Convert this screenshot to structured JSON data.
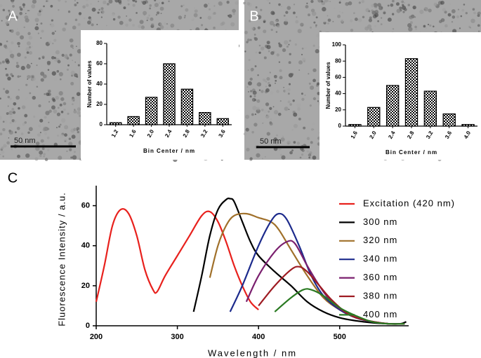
{
  "chart_data": [
    {
      "type": "bar",
      "panel": "A",
      "annotation": "50 nm",
      "categories": [
        "1.2",
        "1.6",
        "2.0",
        "2.4",
        "2.8",
        "3.2",
        "3.6"
      ],
      "values": [
        2,
        8,
        27,
        60,
        35,
        12,
        6
      ],
      "ylim": [
        0,
        80
      ],
      "yticks": [
        0,
        20,
        40,
        60,
        80
      ],
      "x_label": "Bin Center / nm",
      "y_label": "Number of values",
      "color": "#000000"
    },
    {
      "type": "bar",
      "panel": "B",
      "annotation": "50 nm",
      "categories": [
        "1.6",
        "2.0",
        "2.4",
        "2.8",
        "3.2",
        "3.6",
        "4.0"
      ],
      "values": [
        2,
        23,
        50,
        83,
        43,
        15,
        2
      ],
      "ylim": [
        0,
        100
      ],
      "yticks": [
        0,
        20,
        40,
        60,
        80,
        100
      ],
      "x_label": "Bin Center / nm",
      "y_label": "Number of values",
      "color": "#000000"
    },
    {
      "type": "line",
      "panel": "C",
      "x_label": "Wavelength / nm",
      "y_label": "Fluorescence Intensity / a.u.",
      "xlim": [
        200,
        585
      ],
      "xticks": [
        200,
        300,
        400,
        500
      ],
      "ylim": [
        0,
        70
      ],
      "yticks": [
        0,
        20,
        40,
        60
      ],
      "legend": "right",
      "series": [
        {
          "name": "Excitation (420 nm)",
          "color": "#e8211d",
          "x": [
            200,
            210,
            220,
            230,
            240,
            250,
            260,
            270,
            275,
            285,
            300,
            315,
            330,
            340,
            350,
            360,
            370,
            380,
            390,
            400
          ],
          "values": [
            12,
            30,
            50,
            58,
            56,
            45,
            28,
            18,
            17,
            25,
            35,
            45,
            55,
            57,
            52,
            42,
            30,
            20,
            12,
            8
          ]
        },
        {
          "name": "300 nm",
          "color": "#000000",
          "x": [
            320,
            330,
            340,
            350,
            360,
            365,
            370,
            380,
            390,
            400,
            420,
            440,
            460,
            480,
            500,
            520,
            540,
            560,
            575,
            582
          ],
          "values": [
            7,
            25,
            45,
            58,
            63,
            63.5,
            62,
            52,
            42,
            35,
            27,
            20,
            12,
            7,
            4,
            2.5,
            1.5,
            1,
            1,
            2
          ]
        },
        {
          "name": "320 nm",
          "color": "#a0702a",
          "x": [
            340,
            350,
            360,
            370,
            385,
            400,
            415,
            425,
            440,
            460,
            480,
            500,
            520,
            540,
            560,
            580
          ],
          "values": [
            24,
            40,
            50,
            55,
            56,
            54,
            52,
            48,
            38,
            25,
            14,
            8,
            4,
            2,
            1,
            1
          ]
        },
        {
          "name": "340 nm",
          "color": "#1c2a8c",
          "x": [
            365,
            380,
            400,
            415,
            425,
            435,
            450,
            465,
            480,
            500,
            520,
            540,
            560,
            580
          ],
          "values": [
            7,
            20,
            40,
            52,
            56,
            53,
            40,
            25,
            15,
            8,
            4,
            2,
            1,
            1
          ]
        },
        {
          "name": "360 nm",
          "color": "#7a1f6e",
          "x": [
            385,
            400,
            420,
            435,
            445,
            460,
            475,
            490,
            510,
            530,
            560,
            580
          ],
          "values": [
            12,
            25,
            37,
            42,
            41,
            30,
            20,
            12,
            6,
            3,
            1,
            1
          ]
        },
        {
          "name": "380 nm",
          "color": "#9e1b22",
          "x": [
            400,
            420,
            440,
            450,
            460,
            475,
            490,
            510,
            530,
            560,
            580
          ],
          "values": [
            10,
            20,
            28,
            29.5,
            27,
            20,
            13,
            6,
            3,
            1,
            1
          ]
        },
        {
          "name": "400 nm",
          "color": "#2a7a22",
          "x": [
            420,
            440,
            455,
            465,
            480,
            500,
            520,
            540,
            560,
            580
          ],
          "values": [
            7,
            14,
            18,
            18,
            15,
            9,
            5,
            2,
            1,
            1
          ]
        }
      ]
    }
  ]
}
